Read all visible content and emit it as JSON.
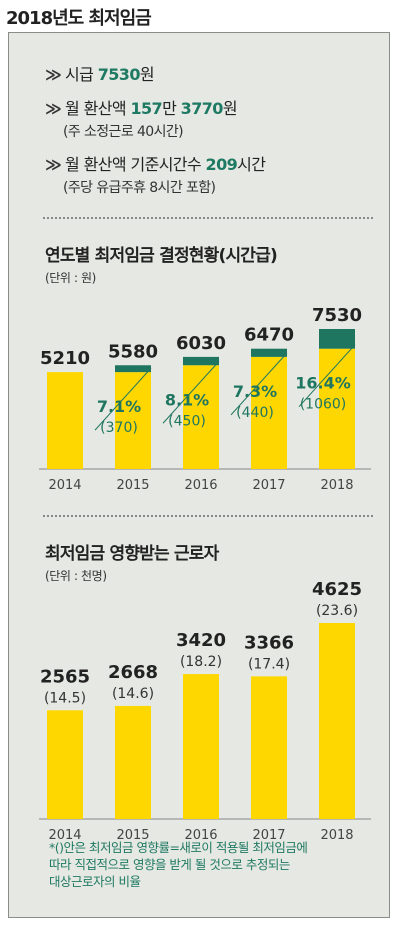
{
  "header": {
    "title": "2018년도 최저임금"
  },
  "summary": {
    "arrow": "≫",
    "line1": {
      "label": "시급 ",
      "value": "7530",
      "suffix": "원"
    },
    "line2": {
      "label": "월 환산액 ",
      "value1": "157",
      "mid": "만 ",
      "value2": "3770",
      "suffix": "원"
    },
    "line2_note": "(주 소정근로 40시간)",
    "line3": {
      "label": "월 환산액 기준시간수 ",
      "value": "209",
      "suffix": "시간"
    },
    "line3_note": "(주당 유급주휴 8시간 포함)"
  },
  "colors": {
    "yellow": "#ffd700",
    "green": "#1e7660",
    "panel": "#e6e8e3",
    "axis": "#888888"
  },
  "chart1": {
    "title": "연도별 최저임금 결정현황(시간급)",
    "unit": "(단위 : 원)"
  },
  "chart2": {
    "title": "최저임금 영향받는 근로자",
    "unit": "(단위 : 천명)"
  },
  "footnote": {
    "line1": "*()안은 최저임금 영향률=새로이 적용될 최저임금에",
    "line2": "따라 직접적으로 영향을 받게 될 것으로 추정되는",
    "line3": "대상근로자의 비율"
  },
  "chart_data": [
    {
      "type": "bar",
      "title": "연도별 최저임금 결정현황(시간급)",
      "unit": "(단위 : 원)",
      "categories": [
        "2014",
        "2015",
        "2016",
        "2017",
        "2018"
      ],
      "values": [
        5210,
        5580,
        6030,
        6470,
        7530
      ],
      "value_labels": [
        "5210",
        "5580",
        "6030",
        "6470",
        "7530"
      ],
      "increase": [
        null,
        370,
        450,
        440,
        1060
      ],
      "increase_labels": [
        "",
        "(370)",
        "(450)",
        "(440)",
        "(1060)"
      ],
      "increase_rate_labels": [
        "",
        "7.1%",
        "8.1%",
        "7.3%",
        "16.4%"
      ],
      "ylim": [
        0,
        7530
      ]
    },
    {
      "type": "bar",
      "title": "최저임금 영향받는 근로자",
      "unit": "(단위 : 천명)",
      "categories": [
        "2014",
        "2015",
        "2016",
        "2017",
        "2018"
      ],
      "values": [
        2565,
        2668,
        3420,
        3366,
        4625
      ],
      "value_labels": [
        "2565",
        "2668",
        "3420",
        "3366",
        "4625"
      ],
      "rate_labels": [
        "(14.5)",
        "(14.6)",
        "(18.2)",
        "(17.4)",
        "(23.6)"
      ],
      "ylim": [
        0,
        4625
      ]
    }
  ]
}
